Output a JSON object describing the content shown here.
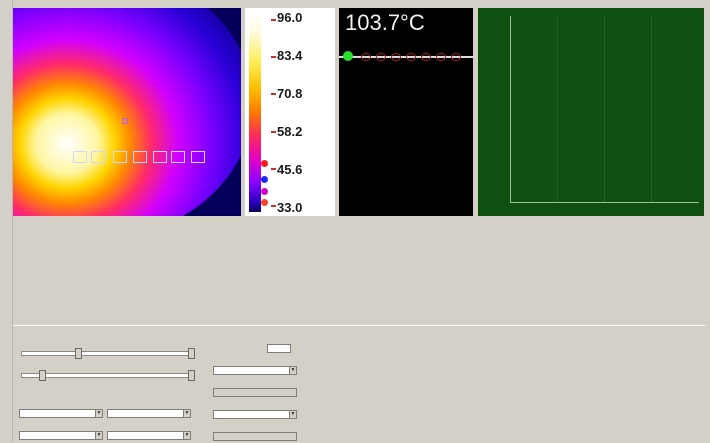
{
  "readout": {
    "temperature": "103.7°C"
  },
  "palette": {
    "labels": [
      "96.0",
      "83.4",
      "70.8",
      "58.2",
      "45.6",
      "33.0"
    ]
  },
  "graph": {
    "accent": "#0f4f0f"
  },
  "colors": {
    "panel_bg": "#d4d0c8",
    "readout_bg": "#000000",
    "graph_bg": "#0f4f0f"
  }
}
